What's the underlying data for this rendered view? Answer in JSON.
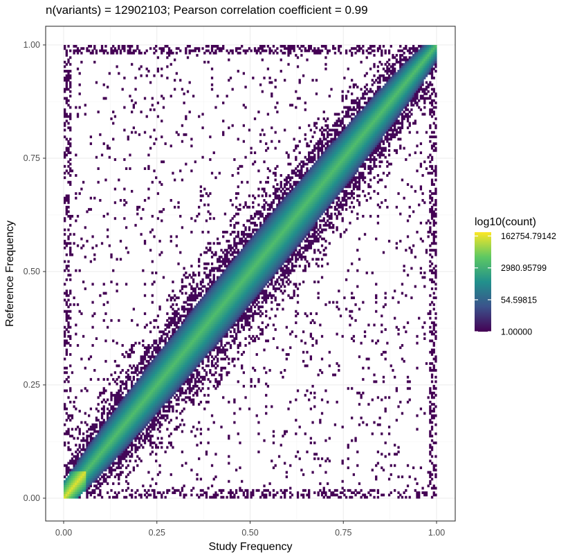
{
  "chart_data": {
    "type": "heatmap",
    "subtype": "2d-binned-density",
    "title": "n(variants) = 12902103; Pearson correlation coefficient = 0.99",
    "xlabel": "Study Frequency",
    "ylabel": "Reference Frequency",
    "xlim": [
      0,
      1
    ],
    "ylim": [
      0,
      1
    ],
    "x_ticks": [
      "0.00",
      "0.25",
      "0.50",
      "0.75",
      "1.00"
    ],
    "y_ticks": [
      "0.00",
      "0.25",
      "0.50",
      "0.75",
      "1.00"
    ],
    "grid": true,
    "n_variants": 12902103,
    "pearson_r": 0.99,
    "diagonal_trend": {
      "from": [
        0,
        0
      ],
      "to": [
        1,
        1
      ]
    },
    "legend": {
      "title": "log10(count)",
      "placement": "right",
      "labels": [
        "162754.79142",
        "2980.95799",
        "54.59815",
        "1.00000"
      ],
      "values": [
        162754.79142,
        2980.95799,
        54.59815,
        1.0
      ],
      "colormap": "viridis",
      "colors": [
        "#440154",
        "#3b528b",
        "#21908c",
        "#5dc863",
        "#fde725"
      ]
    }
  }
}
